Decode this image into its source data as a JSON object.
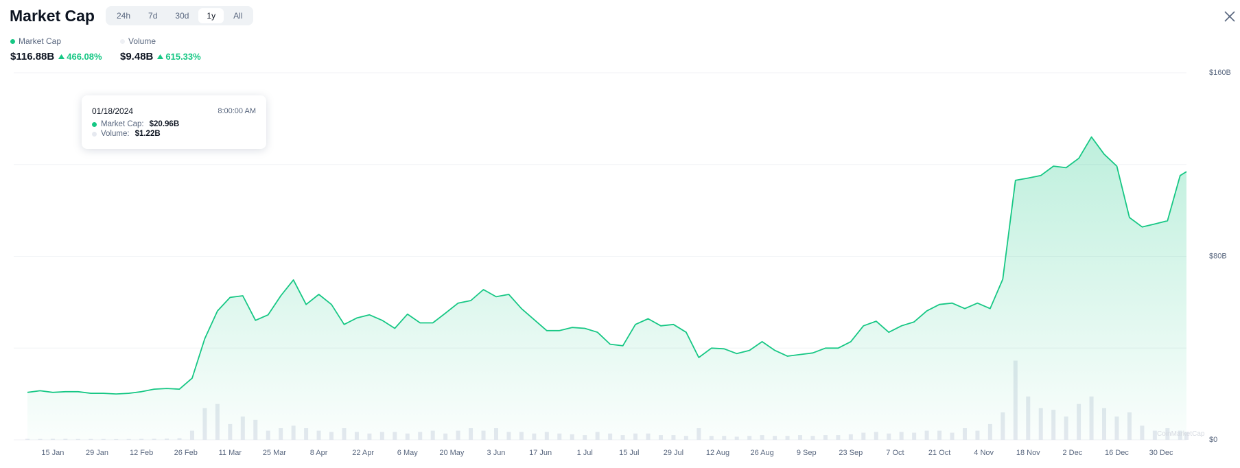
{
  "header": {
    "title": "Market Cap",
    "tabs": [
      "24h",
      "7d",
      "30d",
      "1y",
      "All"
    ],
    "selected_tab": 3
  },
  "summary": {
    "market_cap": {
      "value": "$116.88B",
      "change": "466.08%"
    },
    "volume": {
      "value": "$9.48B",
      "change": "615.33%"
    }
  },
  "tooltip": {
    "date": "01/18/2024",
    "time": "8:00:00 AM",
    "rows": [
      {
        "label": "Market Cap:",
        "value": "$20.96B"
      },
      {
        "label": "Volume:",
        "value": "$1.22B"
      }
    ]
  },
  "watermark": "CoinMarketCap",
  "chart_data": {
    "type": "line",
    "x": [
      7,
      11,
      15,
      19,
      23,
      27,
      31,
      35,
      39,
      43,
      47,
      51,
      55,
      59,
      63,
      67,
      71,
      75,
      79,
      83,
      87,
      91,
      95,
      99,
      103,
      107,
      111,
      115,
      119,
      123,
      127,
      131,
      135,
      139,
      143,
      147,
      151,
      155,
      159,
      163,
      167,
      171,
      175,
      179,
      183,
      187,
      191,
      195,
      199,
      203,
      207,
      211,
      215,
      219,
      223,
      227,
      231,
      235,
      239,
      243,
      247,
      251,
      255,
      259,
      263,
      267,
      271,
      275,
      279,
      283,
      287,
      291,
      295,
      299,
      303,
      307,
      311,
      315,
      319,
      323,
      327,
      331,
      335,
      339,
      343,
      347,
      351,
      355,
      359,
      363,
      367,
      371,
      373
    ],
    "xlim": [
      7,
      373
    ],
    "xticks": [
      {
        "value": 15,
        "label": "15 Jan"
      },
      {
        "value": 29,
        "label": "29 Jan"
      },
      {
        "value": 43,
        "label": "12 Feb"
      },
      {
        "value": 57,
        "label": "26 Feb"
      },
      {
        "value": 71,
        "label": "11 Mar"
      },
      {
        "value": 85,
        "label": "25 Mar"
      },
      {
        "value": 99,
        "label": "8 Apr"
      },
      {
        "value": 113,
        "label": "22 Apr"
      },
      {
        "value": 127,
        "label": "6 May"
      },
      {
        "value": 141,
        "label": "20 May"
      },
      {
        "value": 155,
        "label": "3 Jun"
      },
      {
        "value": 169,
        "label": "17 Jun"
      },
      {
        "value": 183,
        "label": "1 Jul"
      },
      {
        "value": 197,
        "label": "15 Jul"
      },
      {
        "value": 211,
        "label": "29 Jul"
      },
      {
        "value": 225,
        "label": "12 Aug"
      },
      {
        "value": 239,
        "label": "26 Aug"
      },
      {
        "value": 253,
        "label": "9 Sep"
      },
      {
        "value": 267,
        "label": "23 Sep"
      },
      {
        "value": 281,
        "label": "7 Oct"
      },
      {
        "value": 295,
        "label": "21 Oct"
      },
      {
        "value": 309,
        "label": "4 Nov"
      },
      {
        "value": 323,
        "label": "18 Nov"
      },
      {
        "value": 337,
        "label": "2 Dec"
      },
      {
        "value": 351,
        "label": "16 Dec"
      },
      {
        "value": 365,
        "label": "30 Dec"
      }
    ],
    "ylim": [
      0,
      160
    ],
    "yticks": [
      {
        "value": 0,
        "label": "$0"
      },
      {
        "value": 80,
        "label": "$80B"
      },
      {
        "value": 160,
        "label": "$160B"
      }
    ],
    "minor_yticks": [
      40,
      120
    ],
    "y2lim": [
      0,
      440
    ],
    "grid": true,
    "series": [
      {
        "name": "Market Cap",
        "color": "#16c784",
        "values": [
          20.7,
          21.4,
          20.7,
          21.0,
          21.0,
          20.3,
          20.3,
          20.0,
          20.3,
          21.0,
          22.1,
          22.4,
          22.1,
          26.9,
          44.1,
          56.2,
          62.1,
          62.8,
          52.1,
          54.5,
          62.8,
          69.7,
          59.0,
          63.4,
          59.0,
          50.3,
          53.1,
          54.5,
          52.1,
          48.6,
          54.8,
          51.0,
          51.0,
          55.2,
          59.6,
          60.7,
          65.5,
          62.4,
          63.4,
          57.2,
          52.4,
          47.6,
          47.6,
          49.0,
          48.6,
          46.9,
          41.7,
          41.0,
          50.3,
          52.8,
          49.7,
          50.3,
          46.9,
          35.9,
          40.0,
          39.7,
          37.6,
          39.0,
          42.8,
          39.0,
          36.5,
          37.2,
          37.9,
          40.0,
          40.0,
          42.8,
          49.7,
          51.7,
          46.9,
          49.7,
          51.4,
          56.2,
          59.0,
          59.6,
          57.2,
          59.6,
          57.2,
          70.0,
          113.1,
          114.1,
          115.2,
          119.3,
          118.6,
          122.7,
          132.0,
          124.5,
          119.3,
          96.9,
          92.8,
          94.1,
          95.5,
          115.2,
          116.88
        ]
      },
      {
        "name": "Volume",
        "color": "#e6e9f0",
        "axis": "y2",
        "values": [
          1.2,
          1.1,
          1.3,
          1.22,
          1.0,
          1.1,
          1.0,
          0.9,
          1.0,
          1.2,
          1.3,
          1.5,
          2.0,
          11,
          38,
          43,
          19,
          28,
          24,
          11,
          14,
          17,
          14,
          11,
          9.5,
          14,
          9.5,
          7.6,
          9.5,
          9.5,
          7.6,
          9.5,
          11,
          7.6,
          11,
          14,
          11,
          14,
          9.5,
          9.5,
          7.6,
          9.5,
          7.6,
          6.7,
          5.7,
          9.5,
          7.6,
          5.7,
          7.6,
          7.6,
          5.7,
          5.7,
          4.8,
          14,
          4.8,
          4.8,
          3.8,
          4.8,
          5.7,
          4.8,
          4.8,
          5.7,
          4.8,
          5.7,
          5.7,
          6.7,
          8.6,
          9.5,
          7.6,
          9.5,
          8.6,
          11,
          11,
          8.6,
          14,
          11,
          19,
          33,
          95,
          52,
          38,
          36,
          28,
          43,
          52,
          38,
          28,
          33,
          17,
          11,
          14,
          11,
          9.48
        ]
      }
    ]
  }
}
